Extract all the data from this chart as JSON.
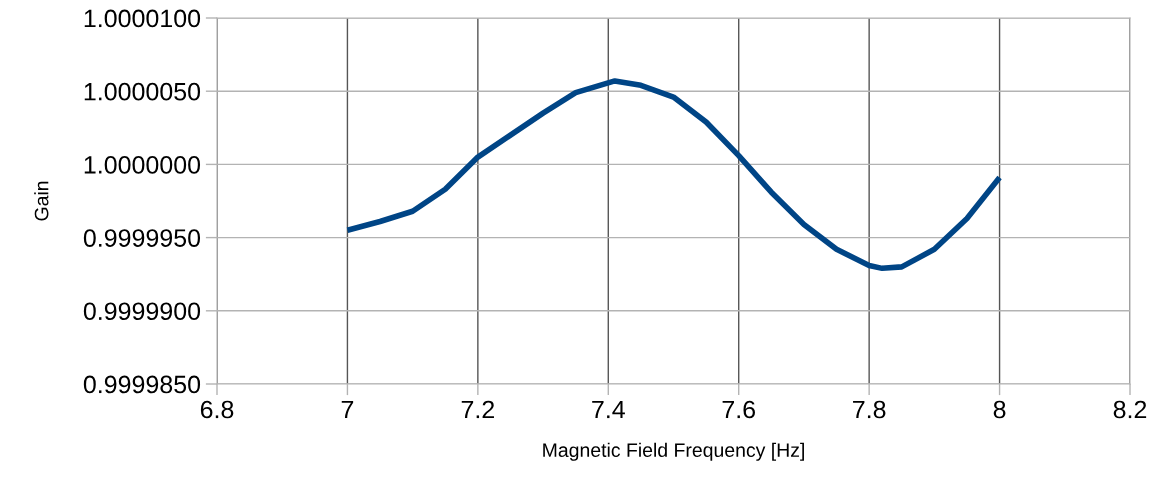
{
  "chart_data": {
    "type": "line",
    "xlabel": "Magnetic Field Frequency [Hz]",
    "ylabel": "Gain",
    "x": [
      7.0,
      7.05,
      7.1,
      7.15,
      7.2,
      7.25,
      7.3,
      7.35,
      7.41,
      7.45,
      7.5,
      7.55,
      7.6,
      7.65,
      7.7,
      7.75,
      7.8,
      7.82,
      7.85,
      7.9,
      7.95,
      8.0
    ],
    "series": [
      {
        "color": "#004586",
        "values": [
          0.9999955,
          0.9999961,
          0.9999968,
          0.9999983,
          1.0000005,
          1.000002,
          1.0000035,
          1.0000049,
          1.0000057,
          1.0000054,
          1.0000046,
          1.0000029,
          1.0000006,
          0.9999981,
          0.9999959,
          0.9999942,
          0.9999931,
          0.9999929,
          0.999993,
          0.9999942,
          0.9999963,
          0.9999991
        ]
      }
    ],
    "xlim": [
      6.8,
      8.2
    ],
    "xticks": [
      6.8,
      7,
      7.2,
      7.4,
      7.6,
      7.8,
      8,
      8.2
    ],
    "ylim": [
      0.999985,
      1.00001
    ],
    "yticks": [
      {
        "value": 0.999985,
        "label": "0.9999850"
      },
      {
        "value": 0.99999,
        "label": "0.9999900"
      },
      {
        "value": 0.999995,
        "label": "0.9999950"
      },
      {
        "value": 1.0,
        "label": "1.0000000"
      },
      {
        "value": 1.000005,
        "label": "1.0000050"
      },
      {
        "value": 1.00001,
        "label": "1.0000100"
      }
    ],
    "grid": true,
    "marker": "none",
    "line_style": "solid"
  }
}
